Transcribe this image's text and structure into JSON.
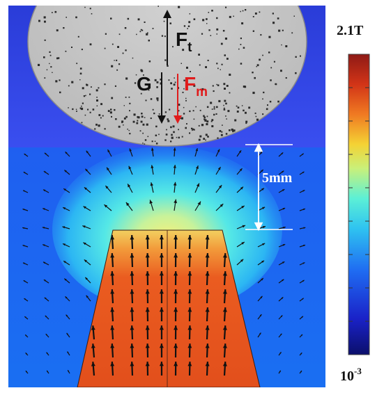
{
  "figure": {
    "labels": {
      "ft_main": "F",
      "ft_sub": "t",
      "g": "G",
      "fm_main": "F",
      "fm_sub": "m",
      "gap": "5mm"
    },
    "colorbar": {
      "max_label": "2.1T",
      "min_base": "10",
      "min_exp": "-3",
      "stops": [
        "#0b0f6b",
        "#1a22c8",
        "#1f6cf2",
        "#2fc3f0",
        "#5cf0d6",
        "#c9f07a",
        "#f4d234",
        "#f07a22",
        "#d23417",
        "#8e1a16"
      ]
    },
    "colors": {
      "background_field": "#2f49e4",
      "sphere": "#c7c7c7",
      "magnet": "#e8501e",
      "force_fm": "#e01b1b",
      "arrow": "#111111",
      "gap_marker": "#ffffff"
    },
    "icons": [
      "force-arrow-ft",
      "force-arrow-g",
      "force-arrow-fm",
      "dimension-arrow",
      "field-arrow"
    ]
  }
}
